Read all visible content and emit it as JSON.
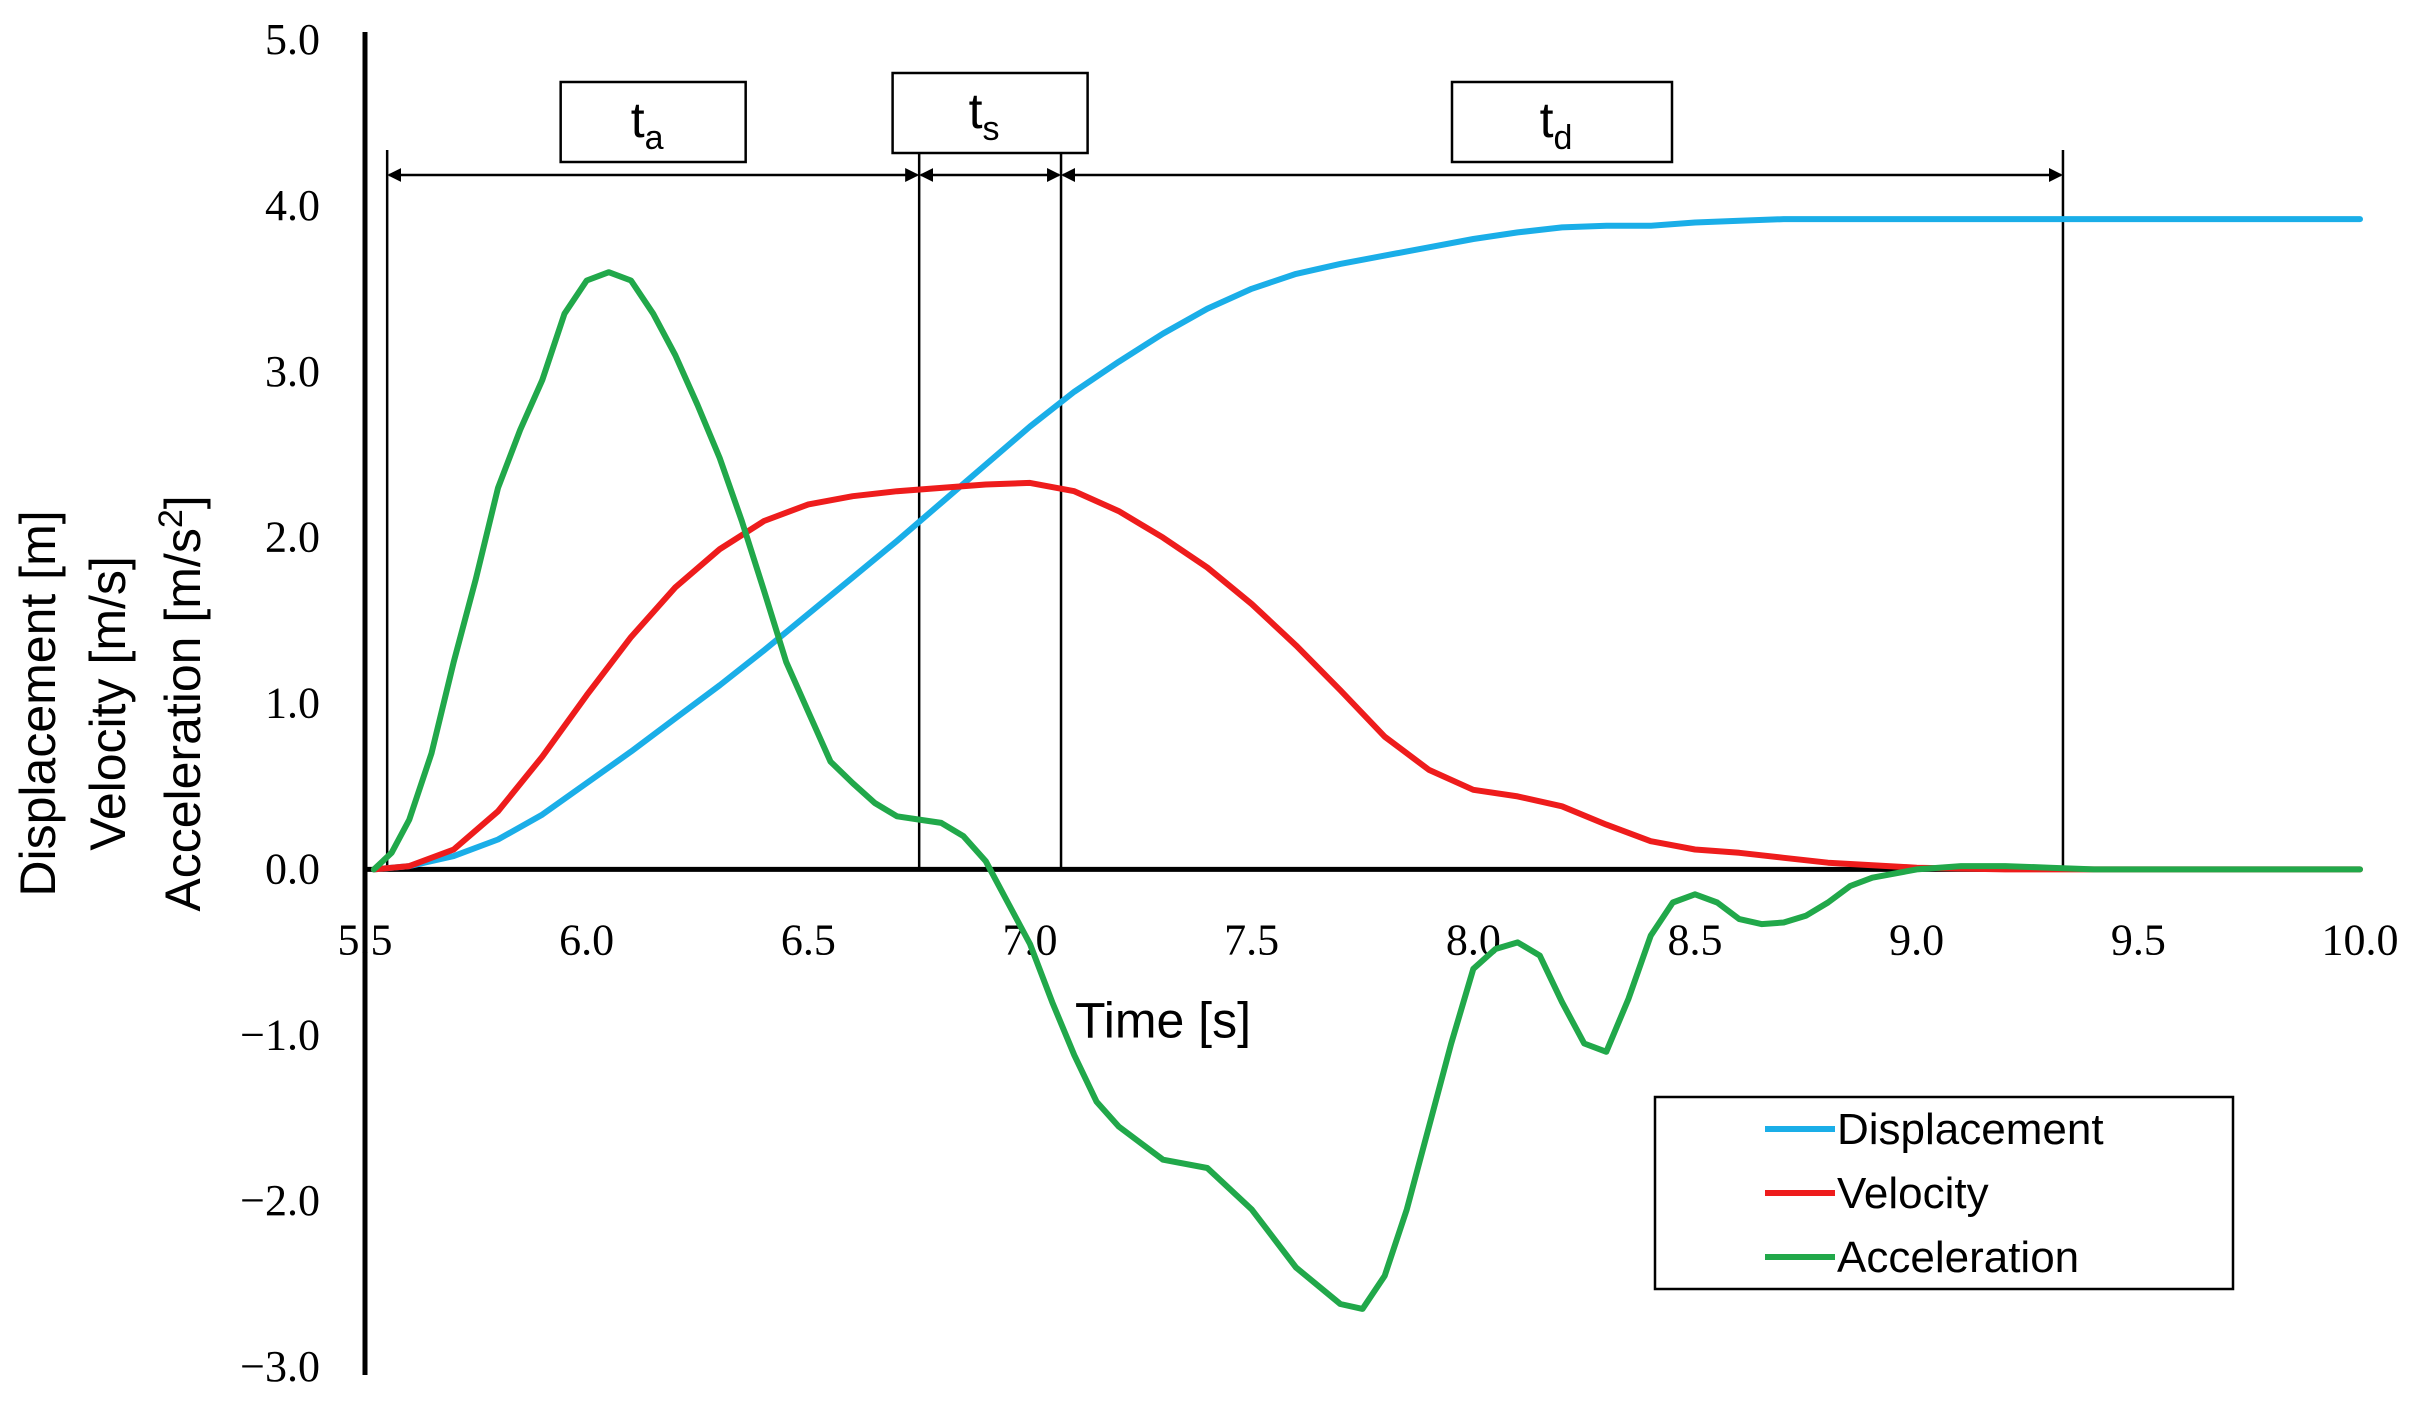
{
  "chart_data": {
    "type": "line",
    "title": "",
    "xlabel": "Time [s]",
    "ylabel_lines": [
      "Displacement [m]",
      "Velocity [m/s]",
      "Acceleration [m/s"
    ],
    "ylabel_superscript": "2",
    "ylabel_close": "]",
    "xlim": [
      5.5,
      10.0
    ],
    "ylim": [
      -3.0,
      5.0
    ],
    "x_ticks": [
      {
        "value": 5.5,
        "label": "5.5"
      },
      {
        "value": 6.0,
        "label": "6.0"
      },
      {
        "value": 6.5,
        "label": "6.5"
      },
      {
        "value": 7.0,
        "label": "7.0"
      },
      {
        "value": 7.5,
        "label": "7.5"
      },
      {
        "value": 8.0,
        "label": "8.0"
      },
      {
        "value": 8.5,
        "label": "8.5"
      },
      {
        "value": 9.0,
        "label": "9.0"
      },
      {
        "value": 9.5,
        "label": "9.5"
      },
      {
        "value": 10.0,
        "label": "10.0"
      }
    ],
    "y_ticks": [
      {
        "value": 5.0,
        "label": "5.0"
      },
      {
        "value": 4.0,
        "label": "4.0"
      },
      {
        "value": 3.0,
        "label": "3.0"
      },
      {
        "value": 2.0,
        "label": "2.0"
      },
      {
        "value": 1.0,
        "label": "1.0"
      },
      {
        "value": 0.0,
        "label": "0.0"
      },
      {
        "value": -1.0,
        "label": "−1.0"
      },
      {
        "value": -2.0,
        "label": "−2.0"
      },
      {
        "value": -3.0,
        "label": "−3.0"
      }
    ],
    "grid": false,
    "legend_position": "bottom-right",
    "series": [
      {
        "name": "Displacement",
        "color": "#1aaee8",
        "x": [
          5.52,
          5.6,
          5.7,
          5.8,
          5.9,
          6.0,
          6.1,
          6.2,
          6.3,
          6.4,
          6.5,
          6.6,
          6.7,
          6.8,
          6.9,
          7.0,
          7.1,
          7.2,
          7.3,
          7.4,
          7.5,
          7.6,
          7.7,
          7.8,
          7.9,
          8.0,
          8.1,
          8.2,
          8.3,
          8.4,
          8.5,
          8.6,
          8.7,
          8.8,
          9.0,
          9.5,
          10.0
        ],
        "y": [
          0.0,
          0.02,
          0.08,
          0.18,
          0.33,
          0.52,
          0.71,
          0.91,
          1.11,
          1.32,
          1.54,
          1.76,
          1.98,
          2.21,
          2.44,
          2.67,
          2.88,
          3.06,
          3.23,
          3.38,
          3.5,
          3.59,
          3.65,
          3.7,
          3.75,
          3.8,
          3.84,
          3.87,
          3.88,
          3.88,
          3.9,
          3.91,
          3.92,
          3.92,
          3.92,
          3.92,
          3.92
        ]
      },
      {
        "name": "Velocity",
        "color": "#ee1c1c",
        "x": [
          5.52,
          5.6,
          5.7,
          5.8,
          5.9,
          6.0,
          6.1,
          6.2,
          6.3,
          6.4,
          6.5,
          6.6,
          6.7,
          6.8,
          6.9,
          7.0,
          7.1,
          7.2,
          7.3,
          7.4,
          7.5,
          7.6,
          7.7,
          7.8,
          7.9,
          8.0,
          8.1,
          8.2,
          8.3,
          8.4,
          8.5,
          8.6,
          8.7,
          8.8,
          9.0,
          9.2,
          9.32,
          9.5,
          10.0
        ],
        "y": [
          0.0,
          0.02,
          0.12,
          0.35,
          0.68,
          1.05,
          1.4,
          1.7,
          1.93,
          2.1,
          2.2,
          2.25,
          2.28,
          2.3,
          2.32,
          2.33,
          2.28,
          2.16,
          2.0,
          1.82,
          1.6,
          1.35,
          1.08,
          0.8,
          0.6,
          0.48,
          0.44,
          0.38,
          0.27,
          0.17,
          0.12,
          0.1,
          0.07,
          0.04,
          0.01,
          0.0,
          0.0,
          0.0,
          0.0
        ]
      },
      {
        "name": "Acceleration",
        "color": "#21a84a",
        "x": [
          5.52,
          5.56,
          5.6,
          5.65,
          5.7,
          5.75,
          5.8,
          5.85,
          5.9,
          5.95,
          6.0,
          6.05,
          6.1,
          6.15,
          6.2,
          6.25,
          6.3,
          6.35,
          6.4,
          6.45,
          6.5,
          6.55,
          6.6,
          6.65,
          6.7,
          6.75,
          6.8,
          6.85,
          6.9,
          6.95,
          7.0,
          7.05,
          7.1,
          7.15,
          7.2,
          7.3,
          7.4,
          7.5,
          7.6,
          7.7,
          7.75,
          7.8,
          7.85,
          7.9,
          7.95,
          8.0,
          8.05,
          8.1,
          8.15,
          8.2,
          8.25,
          8.3,
          8.35,
          8.4,
          8.45,
          8.5,
          8.55,
          8.6,
          8.65,
          8.7,
          8.75,
          8.8,
          8.85,
          8.9,
          9.0,
          9.1,
          9.2,
          9.3,
          9.4,
          9.5,
          9.6,
          9.8,
          10.0
        ],
        "y": [
          0.0,
          0.1,
          0.3,
          0.7,
          1.25,
          1.75,
          2.3,
          2.65,
          2.95,
          3.35,
          3.55,
          3.6,
          3.55,
          3.35,
          3.1,
          2.8,
          2.48,
          2.1,
          1.68,
          1.25,
          0.95,
          0.65,
          0.52,
          0.4,
          0.32,
          0.3,
          0.28,
          0.2,
          0.05,
          -0.2,
          -0.45,
          -0.8,
          -1.12,
          -1.4,
          -1.55,
          -1.75,
          -1.8,
          -2.05,
          -2.4,
          -2.62,
          -2.65,
          -2.45,
          -2.05,
          -1.55,
          -1.05,
          -0.6,
          -0.48,
          -0.44,
          -0.52,
          -0.8,
          -1.05,
          -1.1,
          -0.78,
          -0.4,
          -0.2,
          -0.15,
          -0.2,
          -0.3,
          -0.33,
          -0.32,
          -0.28,
          -0.2,
          -0.1,
          -0.05,
          0.0,
          0.02,
          0.02,
          0.01,
          0.0,
          0.0,
          0.0,
          0.0,
          0.0
        ]
      }
    ],
    "phase_lines": [
      5.55,
      6.75,
      7.07,
      9.33
    ],
    "phases": [
      {
        "label": "t",
        "sub": "a",
        "from": 5.55,
        "to": 6.75
      },
      {
        "label": "t",
        "sub": "s",
        "from": 6.75,
        "to": 7.07
      },
      {
        "label": "t",
        "sub": "d",
        "from": 7.07,
        "to": 9.33
      }
    ],
    "legend": [
      "Displacement",
      "Velocity",
      "Acceleration"
    ]
  }
}
